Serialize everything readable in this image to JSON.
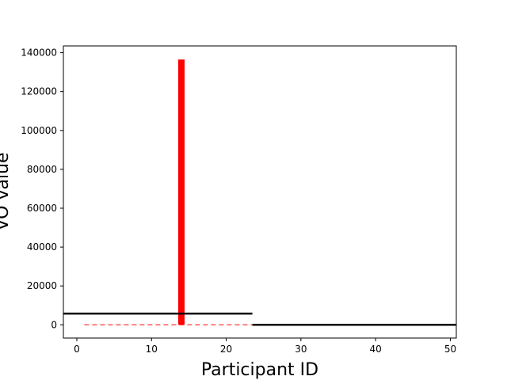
{
  "chart_data": {
    "type": "bar",
    "title": "",
    "xlabel": "Participant ID",
    "ylabel": "VO value",
    "xlim": [
      -1.8,
      50.8
    ],
    "ylim": [
      -6800,
      143500
    ],
    "xticks": [
      0,
      10,
      20,
      30,
      40,
      50
    ],
    "yticks": [
      0,
      20000,
      40000,
      60000,
      80000,
      100000,
      120000,
      140000
    ],
    "grid": false,
    "bars": [
      {
        "x": 14,
        "value": 136500,
        "color": "#ff0000"
      }
    ],
    "reference_lines": [
      {
        "x": [
          -1.8,
          23.5
        ],
        "y": 5800,
        "color": "#000000",
        "style": "solid"
      },
      {
        "x": [
          23.5,
          50.8
        ],
        "y": 0,
        "color": "#000000",
        "style": "solid"
      },
      {
        "x": [
          1,
          23.5
        ],
        "y": 0,
        "color": "#ff0000",
        "style": "dashed"
      }
    ]
  }
}
